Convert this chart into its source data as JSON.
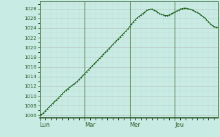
{
  "background_color": "#c8ece4",
  "plot_bg_color": "#c8ece4",
  "line_color": "#1a5c1a",
  "marker_color": "#1a5c1a",
  "grid_major_color": "#b0b0b0",
  "grid_minor_color": "#c0c0c0",
  "spine_color": "#2a5a2a",
  "tick_label_color": "#2a5a2a",
  "ylim": [
    1005.5,
    1029.5
  ],
  "yticks": [
    1006,
    1008,
    1010,
    1012,
    1014,
    1016,
    1018,
    1020,
    1022,
    1024,
    1026,
    1028
  ],
  "xtick_labels": [
    "Lun",
    "Mar",
    "Mer",
    "Jeu"
  ],
  "xtick_positions": [
    0,
    24,
    48,
    72
  ],
  "total_hours": 96,
  "pressure_values": [
    1006.0,
    1006.2,
    1006.5,
    1006.9,
    1007.3,
    1007.7,
    1008.1,
    1008.5,
    1008.9,
    1009.2,
    1009.6,
    1010.0,
    1010.4,
    1010.8,
    1011.2,
    1011.5,
    1011.8,
    1012.1,
    1012.4,
    1012.7,
    1013.0,
    1013.4,
    1013.8,
    1014.2,
    1014.6,
    1015.0,
    1015.4,
    1015.8,
    1016.2,
    1016.6,
    1017.0,
    1017.4,
    1017.8,
    1018.2,
    1018.6,
    1019.0,
    1019.4,
    1019.8,
    1020.2,
    1020.6,
    1021.0,
    1021.4,
    1021.8,
    1022.2,
    1022.6,
    1023.0,
    1023.4,
    1023.8,
    1024.3,
    1024.8,
    1025.3,
    1025.7,
    1026.1,
    1026.4,
    1026.7,
    1027.0,
    1027.3,
    1027.6,
    1027.8,
    1027.9,
    1027.9,
    1027.7,
    1027.5,
    1027.2,
    1027.0,
    1026.8,
    1026.7,
    1026.6,
    1026.6,
    1026.7,
    1026.9,
    1027.1,
    1027.3,
    1027.5,
    1027.7,
    1027.9,
    1028.0,
    1028.1,
    1028.1,
    1028.0,
    1027.9,
    1027.8,
    1027.6,
    1027.4,
    1027.2,
    1027.0,
    1026.7,
    1026.4,
    1026.1,
    1025.7,
    1025.3,
    1024.9,
    1024.5,
    1024.3,
    1024.2,
    1024.2
  ]
}
